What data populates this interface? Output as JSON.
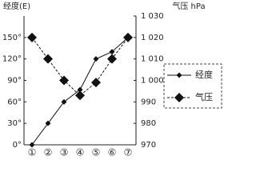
{
  "chart_data": {
    "type": "line",
    "y_label": "经度(E)",
    "y2_label": "气压 hPa",
    "categories": [
      "①",
      "②",
      "③",
      "④",
      "⑤",
      "⑥",
      "⑦"
    ],
    "series": [
      {
        "name": "经度",
        "color": "#111111",
        "values": [
          0,
          30,
          60,
          77,
          120,
          130,
          150
        ]
      },
      {
        "name": "气压",
        "color": "#111111",
        "axis": "y2",
        "values": [
          1020,
          1010,
          1000,
          993,
          999,
          1010,
          1020
        ]
      }
    ],
    "ylim": [
      0,
      180
    ],
    "yticks": [
      {
        "value": 0,
        "label": "0°"
      },
      {
        "value": 30,
        "label": "30°"
      },
      {
        "value": 60,
        "label": "60°"
      },
      {
        "value": 90,
        "label": "90°"
      },
      {
        "value": 120,
        "label": "120°"
      },
      {
        "value": 150,
        "label": "150°"
      }
    ],
    "y2lim": [
      970,
      1030
    ],
    "y2ticks": [
      970,
      980,
      990,
      {
        "value": 1000,
        "label": "1 000"
      },
      {
        "value": 1010,
        "label": "1 010"
      },
      {
        "value": 1020,
        "label": "1 020"
      },
      {
        "value": 1030,
        "label": "1 030"
      }
    ],
    "legend": "right"
  }
}
